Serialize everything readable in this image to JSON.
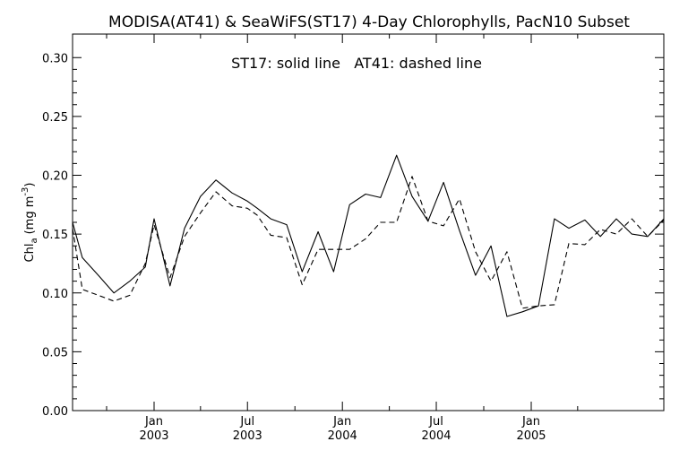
{
  "chart_data": {
    "type": "line",
    "title": "MODISA(AT41) & SeaWiFS(ST17) 4-Day Chlorophylls, PacN10 Subset",
    "annotation": "ST17: solid line   AT41: dashed line",
    "ylabel": "Chl",
    "ylabel_sub": "a",
    "ylabel_units_pre": "(mg m",
    "ylabel_units_sup": "-3",
    "ylabel_units_post": ")",
    "ylim": [
      0.0,
      0.32
    ],
    "yticks": [
      "0.00",
      "0.05",
      "0.10",
      "0.15",
      "0.20",
      "0.25",
      "0.30"
    ],
    "xlim": [
      "2002-07-27",
      "2005-09-15"
    ],
    "xticks": [
      {
        "date": "2003-01-01",
        "month": "Jan",
        "year": "2003"
      },
      {
        "date": "2003-07-01",
        "month": "Jul",
        "year": "2003"
      },
      {
        "date": "2004-01-01",
        "month": "Jan",
        "year": "2004"
      },
      {
        "date": "2004-07-01",
        "month": "Jul",
        "year": "2004"
      },
      {
        "date": "2005-01-01",
        "month": "Jan",
        "year": "2005"
      }
    ],
    "minor_ticks": [
      "2002-10-01",
      "2003-04-01",
      "2003-10-01",
      "2004-04-01",
      "2004-10-01",
      "2005-04-01"
    ],
    "series": [
      {
        "name": "ST17",
        "style": "solid",
        "color": "#000000",
        "x": [
          "2002-07-27",
          "2002-08-15",
          "2002-09-15",
          "2002-10-15",
          "2002-11-15",
          "2002-12-15",
          "2003-01-01",
          "2003-02-01",
          "2003-03-01",
          "2003-04-01",
          "2003-05-01",
          "2003-06-01",
          "2003-07-01",
          "2003-07-20",
          "2003-08-15",
          "2003-09-15",
          "2003-10-15",
          "2003-11-15",
          "2003-12-15",
          "2004-01-15",
          "2004-02-15",
          "2004-03-15",
          "2004-04-15",
          "2004-05-15",
          "2004-06-15",
          "2004-07-15",
          "2004-08-15",
          "2004-09-15",
          "2004-10-15",
          "2004-11-15",
          "2004-12-15",
          "2005-01-15",
          "2005-02-15",
          "2005-03-15",
          "2005-04-15",
          "2005-05-15",
          "2005-06-15",
          "2005-07-15",
          "2005-08-15",
          "2005-09-15"
        ],
        "y": [
          0.16,
          0.13,
          0.115,
          0.1,
          0.11,
          0.122,
          0.163,
          0.106,
          0.155,
          0.182,
          0.196,
          0.185,
          0.178,
          0.172,
          0.163,
          0.158,
          0.118,
          0.152,
          0.118,
          0.175,
          0.184,
          0.181,
          0.217,
          0.182,
          0.161,
          0.194,
          0.153,
          0.115,
          0.14,
          0.08,
          0.084,
          0.089,
          0.163,
          0.155,
          0.162,
          0.148,
          0.163,
          0.15,
          0.148,
          0.163
        ]
      },
      {
        "name": "AT41",
        "style": "dashed",
        "color": "#000000",
        "x": [
          "2002-07-27",
          "2002-08-15",
          "2002-09-15",
          "2002-10-15",
          "2002-11-15",
          "2002-12-15",
          "2003-01-01",
          "2003-02-01",
          "2003-03-01",
          "2003-04-01",
          "2003-05-01",
          "2003-06-01",
          "2003-07-01",
          "2003-07-20",
          "2003-08-15",
          "2003-09-15",
          "2003-10-15",
          "2003-11-15",
          "2003-12-15",
          "2004-01-15",
          "2004-02-15",
          "2004-03-15",
          "2004-04-15",
          "2004-05-15",
          "2004-06-15",
          "2004-07-15",
          "2004-08-15",
          "2004-09-15",
          "2004-10-15",
          "2004-11-15",
          "2004-12-15",
          "2005-01-15",
          "2005-02-15",
          "2005-03-15",
          "2005-04-15",
          "2005-05-15",
          "2005-06-15",
          "2005-07-15",
          "2005-08-15",
          "2005-09-15"
        ],
        "y": [
          0.155,
          0.103,
          0.098,
          0.093,
          0.098,
          0.125,
          0.158,
          0.113,
          0.148,
          0.168,
          0.186,
          0.174,
          0.172,
          0.166,
          0.149,
          0.147,
          0.107,
          0.137,
          0.137,
          0.137,
          0.146,
          0.16,
          0.16,
          0.199,
          0.161,
          0.157,
          0.18,
          0.135,
          0.11,
          0.135,
          0.087,
          0.089,
          0.09,
          0.142,
          0.141,
          0.154,
          0.15,
          0.163,
          0.148,
          0.162
        ]
      }
    ],
    "grid": false,
    "legend": "none"
  }
}
